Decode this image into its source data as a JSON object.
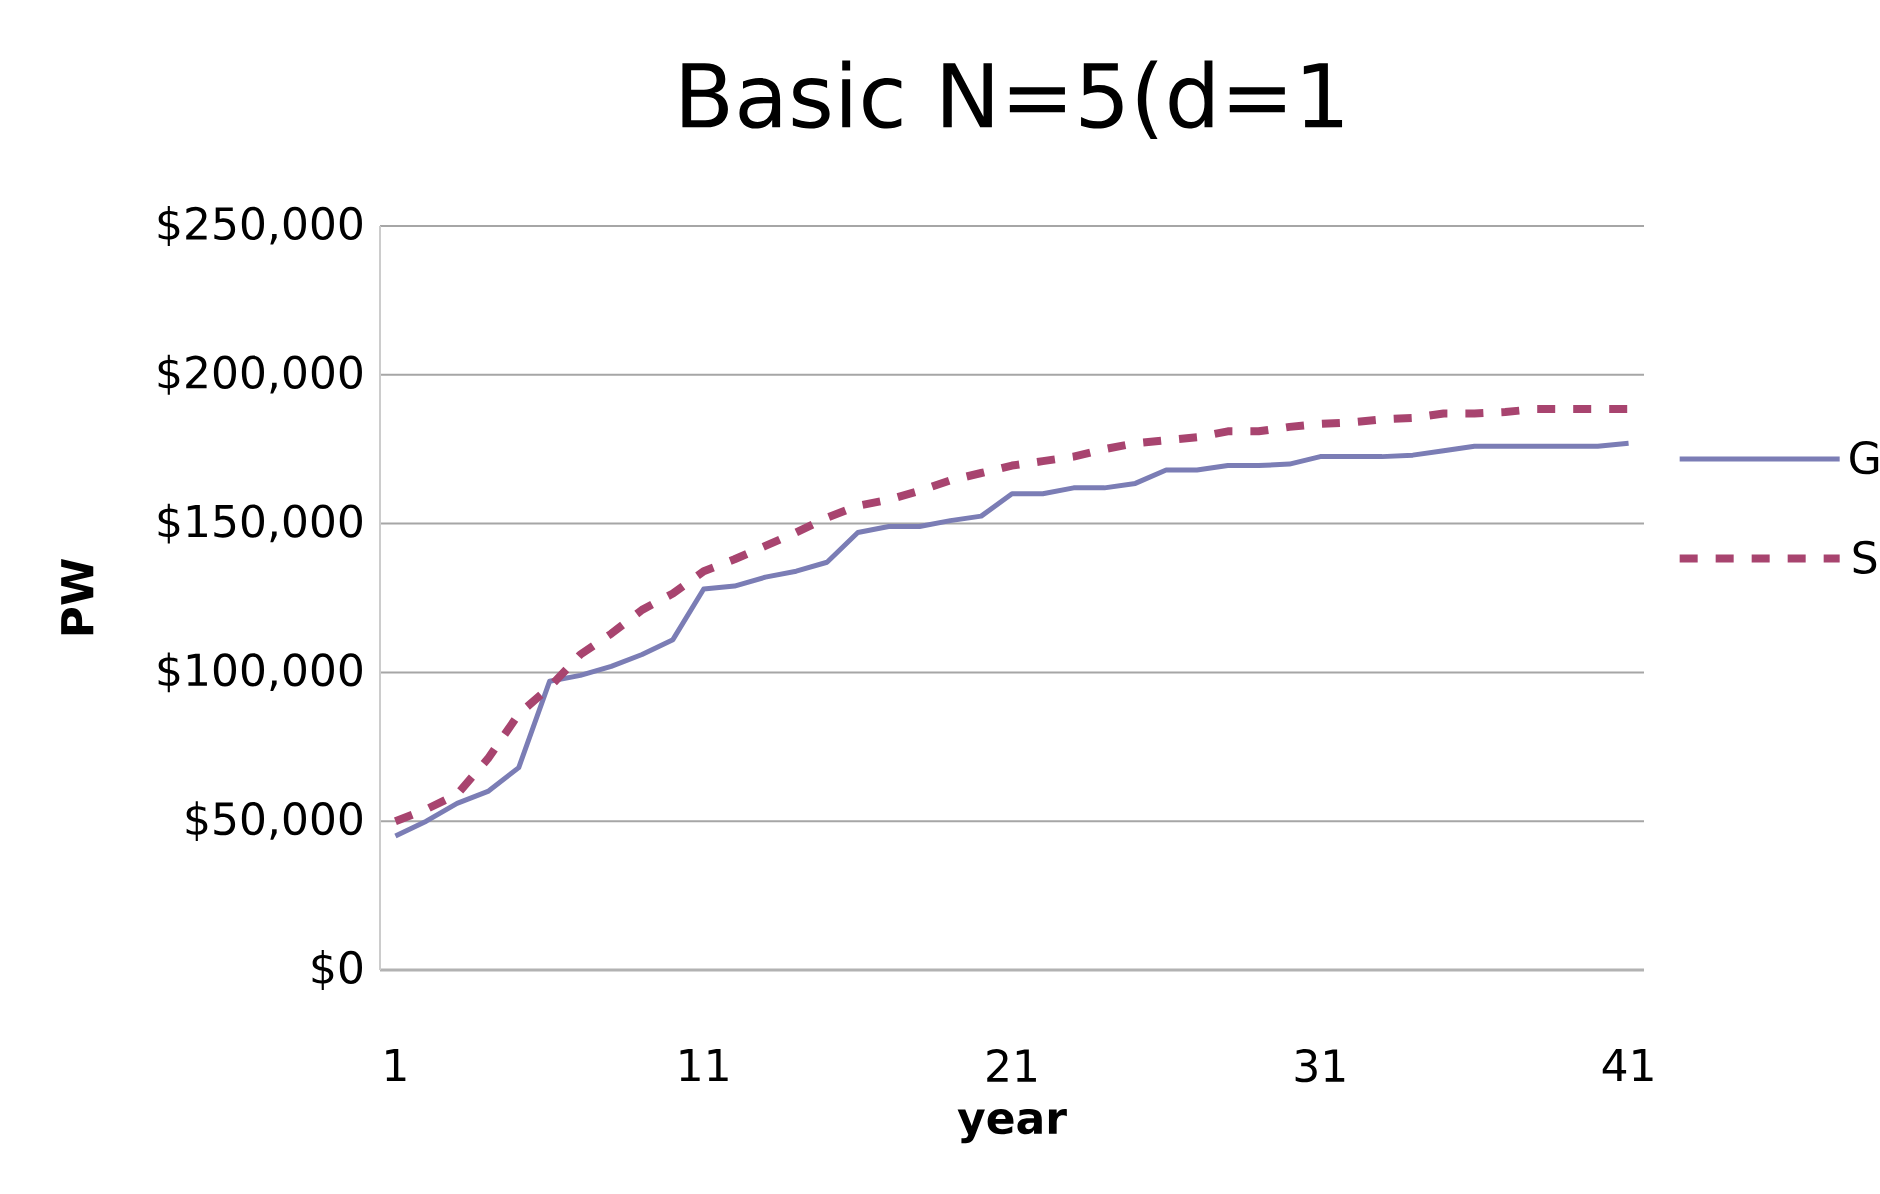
{
  "chart_data": {
    "type": "line",
    "title": "Basic  N=5(d=1",
    "xlabel": "year",
    "ylabel": "PW",
    "x": [
      1,
      2,
      3,
      4,
      5,
      6,
      7,
      8,
      9,
      10,
      11,
      12,
      13,
      14,
      15,
      16,
      17,
      18,
      19,
      20,
      21,
      22,
      23,
      24,
      25,
      26,
      27,
      28,
      29,
      30,
      31,
      32,
      33,
      34,
      35,
      36,
      37,
      38,
      39,
      40,
      41
    ],
    "series": [
      {
        "name": "G",
        "color": "#7b7db5",
        "line_style": "solid",
        "values": [
          45000,
          50000,
          56000,
          60000,
          68000,
          97000,
          99000,
          102000,
          106000,
          111000,
          128000,
          129000,
          132000,
          134000,
          137000,
          147000,
          149000,
          149000,
          151000,
          152500,
          160000,
          160000,
          162000,
          162000,
          163500,
          168000,
          168000,
          169500,
          169500,
          170000,
          172500,
          172500,
          172500,
          173000,
          174500,
          176000,
          176000,
          176000,
          176000,
          176000,
          177000
        ]
      },
      {
        "name": "S",
        "color": "#a8446f",
        "line_style": "dashed",
        "values": [
          50000,
          54000,
          59000,
          71000,
          86000,
          95000,
          106000,
          113000,
          121000,
          126500,
          134000,
          138000,
          142500,
          147000,
          152000,
          156000,
          158000,
          161000,
          164500,
          167000,
          169500,
          171000,
          172500,
          175000,
          177000,
          178000,
          179000,
          181000,
          181000,
          182500,
          183500,
          184000,
          185000,
          185500,
          187000,
          187000,
          187500,
          188500,
          188500,
          188500,
          188500
        ]
      }
    ],
    "xlim": [
      0.5,
      41.5
    ],
    "xticks": [
      1,
      11,
      21,
      31,
      41
    ],
    "ylim": [
      0,
      250000
    ],
    "yticks": [
      {
        "value": 0,
        "label": "$0"
      },
      {
        "value": 50000,
        "label": "$50,000"
      },
      {
        "value": 100000,
        "label": "$100,000"
      },
      {
        "value": 150000,
        "label": "$150,000"
      },
      {
        "value": 200000,
        "label": "$200,000"
      },
      {
        "value": 250000,
        "label": "$250,000"
      }
    ],
    "grid": "y",
    "legend": "right",
    "marker": "none"
  }
}
